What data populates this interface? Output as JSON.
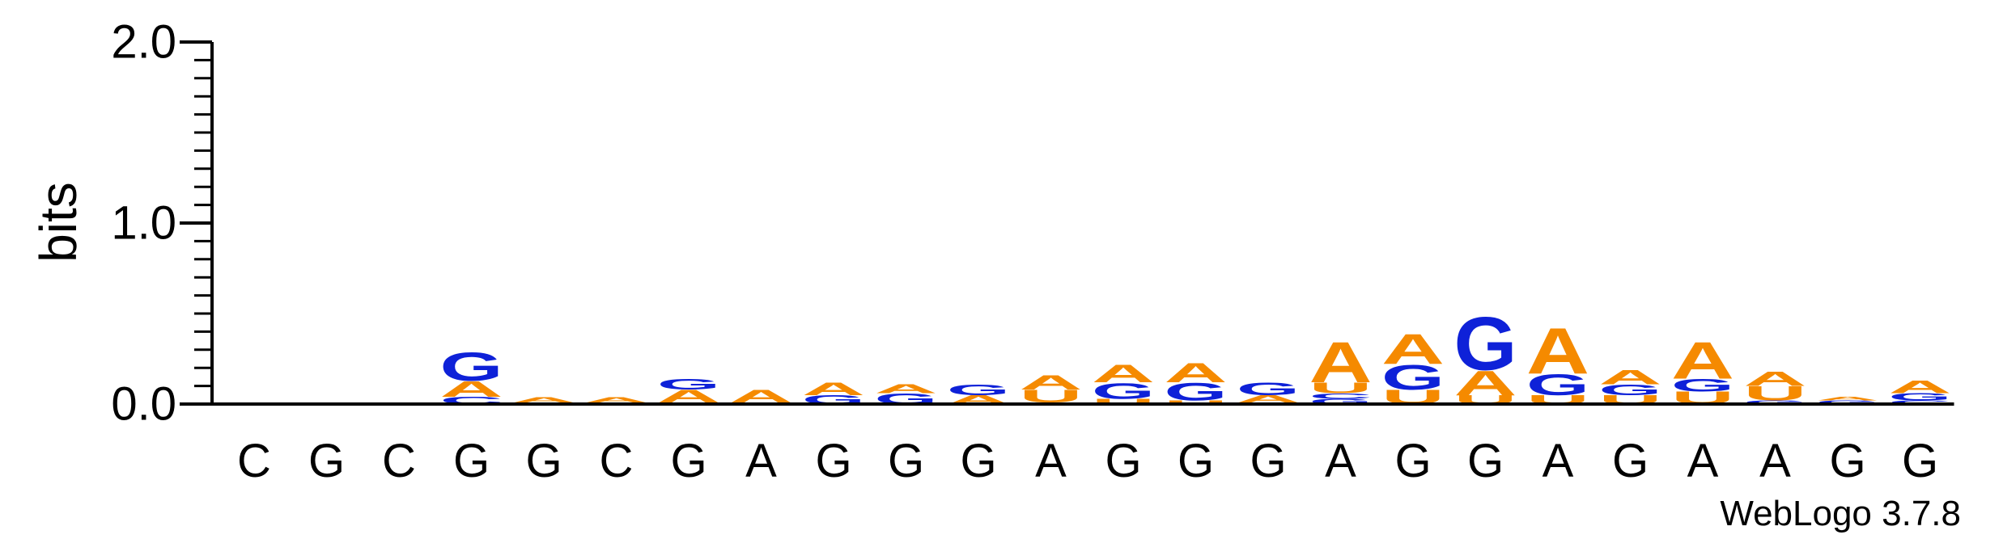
{
  "chart_data": {
    "type": "sequence_logo",
    "title": "",
    "xlabel": "",
    "ylabel": "bits",
    "ylim": [
      0,
      2
    ],
    "yticks": [
      "0.0",
      "1.0",
      "2.0"
    ],
    "footer": "WebLogo 3.7.8",
    "colors": {
      "A": "#f58a00",
      "C": "#0e21d8",
      "G": "#0e21d8",
      "U": "#f58a00"
    },
    "positions": [
      {
        "label": "C",
        "stack": []
      },
      {
        "label": "G",
        "stack": []
      },
      {
        "label": "C",
        "stack": []
      },
      {
        "label": "G",
        "stack": [
          {
            "letter": "C",
            "bits": 0.04
          },
          {
            "letter": "A",
            "bits": 0.09
          },
          {
            "letter": "G",
            "bits": 0.16
          }
        ]
      },
      {
        "label": "G",
        "stack": [
          {
            "letter": "C",
            "bits": 0.01
          },
          {
            "letter": "A",
            "bits": 0.03
          }
        ]
      },
      {
        "label": "C",
        "stack": [
          {
            "letter": "C",
            "bits": 0.01
          },
          {
            "letter": "A",
            "bits": 0.03
          }
        ]
      },
      {
        "label": "G",
        "stack": [
          {
            "letter": "C",
            "bits": 0.01
          },
          {
            "letter": "A",
            "bits": 0.07
          },
          {
            "letter": "G",
            "bits": 0.06
          }
        ]
      },
      {
        "label": "A",
        "stack": [
          {
            "letter": "C",
            "bits": 0.01
          },
          {
            "letter": "A",
            "bits": 0.07
          }
        ]
      },
      {
        "label": "G",
        "stack": [
          {
            "letter": "G",
            "bits": 0.05
          },
          {
            "letter": "A",
            "bits": 0.07
          }
        ]
      },
      {
        "label": "G",
        "stack": [
          {
            "letter": "G",
            "bits": 0.06
          },
          {
            "letter": "A",
            "bits": 0.05
          }
        ]
      },
      {
        "label": "G",
        "stack": [
          {
            "letter": "A",
            "bits": 0.05
          },
          {
            "letter": "G",
            "bits": 0.06
          }
        ]
      },
      {
        "label": "A",
        "stack": [
          {
            "letter": "G",
            "bits": 0.01
          },
          {
            "letter": "U",
            "bits": 0.07
          },
          {
            "letter": "A",
            "bits": 0.08
          }
        ]
      },
      {
        "label": "G",
        "stack": [
          {
            "letter": "U",
            "bits": 0.03
          },
          {
            "letter": "G",
            "bits": 0.09
          },
          {
            "letter": "A",
            "bits": 0.1
          }
        ]
      },
      {
        "label": "G",
        "stack": [
          {
            "letter": "U",
            "bits": 0.02
          },
          {
            "letter": "G",
            "bits": 0.1
          },
          {
            "letter": "A",
            "bits": 0.11
          }
        ]
      },
      {
        "label": "G",
        "stack": [
          {
            "letter": "U",
            "bits": 0.01
          },
          {
            "letter": "A",
            "bits": 0.04
          },
          {
            "letter": "G",
            "bits": 0.07
          }
        ]
      },
      {
        "label": "A",
        "stack": [
          {
            "letter": "G",
            "bits": 0.03
          },
          {
            "letter": "C",
            "bits": 0.03
          },
          {
            "letter": "U",
            "bits": 0.06
          },
          {
            "letter": "A",
            "bits": 0.23
          }
        ]
      },
      {
        "label": "G",
        "stack": [
          {
            "letter": "U",
            "bits": 0.08
          },
          {
            "letter": "G",
            "bits": 0.14
          },
          {
            "letter": "A",
            "bits": 0.17
          }
        ]
      },
      {
        "label": "G",
        "stack": [
          {
            "letter": "U",
            "bits": 0.05
          },
          {
            "letter": "A",
            "bits": 0.14
          },
          {
            "letter": "G",
            "bits": 0.3
          }
        ]
      },
      {
        "label": "A",
        "stack": [
          {
            "letter": "U",
            "bits": 0.05
          },
          {
            "letter": "G",
            "bits": 0.12
          },
          {
            "letter": "A",
            "bits": 0.26
          }
        ]
      },
      {
        "label": "G",
        "stack": [
          {
            "letter": "U",
            "bits": 0.05
          },
          {
            "letter": "G",
            "bits": 0.06
          },
          {
            "letter": "A",
            "bits": 0.08
          }
        ]
      },
      {
        "label": "A",
        "stack": [
          {
            "letter": "U",
            "bits": 0.07
          },
          {
            "letter": "G",
            "bits": 0.07
          },
          {
            "letter": "A",
            "bits": 0.21
          }
        ]
      },
      {
        "label": "A",
        "stack": [
          {
            "letter": "G",
            "bits": 0.02
          },
          {
            "letter": "U",
            "bits": 0.08
          },
          {
            "letter": "A",
            "bits": 0.08
          }
        ]
      },
      {
        "label": "G",
        "stack": [
          {
            "letter": "G",
            "bits": 0.02
          },
          {
            "letter": "A",
            "bits": 0.02
          }
        ]
      },
      {
        "label": "G",
        "stack": [
          {
            "letter": "C",
            "bits": 0.02
          },
          {
            "letter": "G",
            "bits": 0.04
          },
          {
            "letter": "A",
            "bits": 0.07
          }
        ]
      }
    ]
  }
}
